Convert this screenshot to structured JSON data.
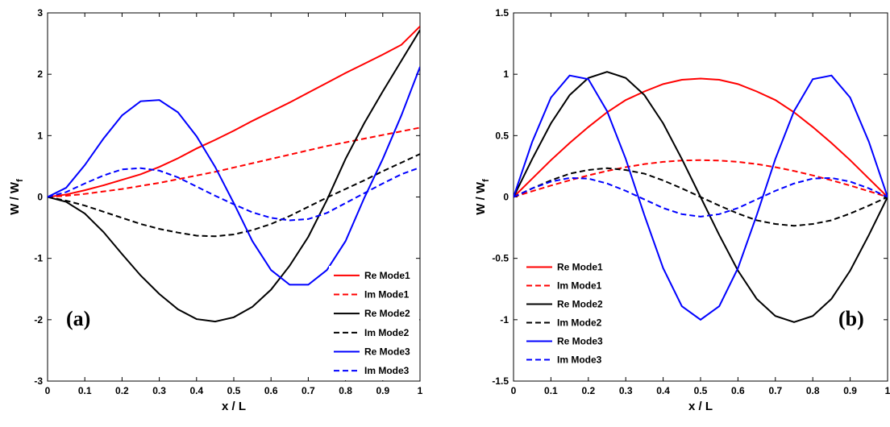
{
  "chart_data": [
    {
      "type": "line",
      "panel_label": "(a)",
      "xlabel": "x / L",
      "ylabel_main": "W / W",
      "ylabel_sub": "f",
      "xlim": [
        0,
        1
      ],
      "ylim": [
        -3,
        3
      ],
      "xticks": [
        "0",
        "0.1",
        "0.2",
        "0.3",
        "0.4",
        "0.5",
        "0.6",
        "0.7",
        "0.8",
        "0.9",
        "1"
      ],
      "yticks": [
        "-3",
        "-2",
        "-1",
        "0",
        "1",
        "2",
        "3"
      ],
      "legend_position": "bottom-right",
      "x": [
        0,
        0.05,
        0.1,
        0.15,
        0.2,
        0.25,
        0.3,
        0.35,
        0.4,
        0.45,
        0.5,
        0.55,
        0.6,
        0.65,
        0.7,
        0.75,
        0.8,
        0.85,
        0.9,
        0.95,
        1
      ],
      "series": [
        {
          "name": "Re Mode1",
          "color": "#ff0000",
          "dash": "solid",
          "values": [
            0,
            0.04,
            0.11,
            0.19,
            0.28,
            0.37,
            0.49,
            0.63,
            0.79,
            0.93,
            1.08,
            1.24,
            1.39,
            1.54,
            1.7,
            1.86,
            2.02,
            2.17,
            2.32,
            2.48,
            2.78
          ]
        },
        {
          "name": "Im  Mode1",
          "color": "#ff0000",
          "dash": "dashed",
          "values": [
            0,
            0.02,
            0.05,
            0.09,
            0.13,
            0.18,
            0.23,
            0.29,
            0.35,
            0.41,
            0.48,
            0.55,
            0.62,
            0.69,
            0.76,
            0.83,
            0.89,
            0.95,
            1.01,
            1.07,
            1.13
          ]
        },
        {
          "name": "Re Mode2",
          "color": "#000000",
          "dash": "solid",
          "values": [
            0,
            -0.08,
            -0.27,
            -0.57,
            -0.93,
            -1.28,
            -1.58,
            -1.83,
            -1.99,
            -2.03,
            -1.96,
            -1.79,
            -1.51,
            -1.12,
            -0.65,
            -0.05,
            0.62,
            1.2,
            1.72,
            2.22,
            2.72
          ]
        },
        {
          "name": "Im  Mode2",
          "color": "#000000",
          "dash": "dashed",
          "values": [
            0,
            -0.06,
            -0.14,
            -0.24,
            -0.34,
            -0.44,
            -0.52,
            -0.58,
            -0.63,
            -0.64,
            -0.61,
            -0.54,
            -0.44,
            -0.31,
            -0.16,
            -0.01,
            0.13,
            0.27,
            0.42,
            0.56,
            0.7
          ]
        },
        {
          "name": "Re Mode3",
          "color": "#0000ff",
          "dash": "solid",
          "values": [
            0,
            0.15,
            0.52,
            0.95,
            1.33,
            1.56,
            1.58,
            1.38,
            0.99,
            0.49,
            -0.1,
            -0.72,
            -1.19,
            -1.43,
            -1.43,
            -1.19,
            -0.72,
            -0.02,
            0.62,
            1.33,
            2.12
          ]
        },
        {
          "name": "Im  Mode3",
          "color": "#0000ff",
          "dash": "dashed",
          "values": [
            0,
            0.08,
            0.22,
            0.35,
            0.45,
            0.47,
            0.43,
            0.32,
            0.17,
            0.02,
            -0.12,
            -0.25,
            -0.34,
            -0.38,
            -0.36,
            -0.26,
            -0.1,
            0.06,
            0.22,
            0.37,
            0.48
          ]
        }
      ]
    },
    {
      "type": "line",
      "panel_label": "(b)",
      "xlabel": "x / L",
      "ylabel_main": "W / W",
      "ylabel_sub": "f",
      "xlim": [
        0,
        1
      ],
      "ylim": [
        -1.5,
        1.5
      ],
      "xticks": [
        "0",
        "0.1",
        "0.2",
        "0.3",
        "0.4",
        "0.5",
        "0.6",
        "0.7",
        "0.8",
        "0.9",
        "1"
      ],
      "yticks": [
        "-1.5",
        "-1",
        "-0.5",
        "0",
        "0.5",
        "1",
        "1.5"
      ],
      "legend_position": "bottom-left",
      "x": [
        0,
        0.05,
        0.1,
        0.15,
        0.2,
        0.25,
        0.3,
        0.35,
        0.4,
        0.45,
        0.5,
        0.55,
        0.6,
        0.65,
        0.7,
        0.75,
        0.8,
        0.85,
        0.9,
        0.95,
        1
      ],
      "series": [
        {
          "name": "Re Mode1",
          "color": "#ff0000",
          "dash": "solid",
          "values": [
            0,
            0.15,
            0.3,
            0.44,
            0.57,
            0.69,
            0.79,
            0.86,
            0.92,
            0.955,
            0.965,
            0.955,
            0.92,
            0.86,
            0.79,
            0.69,
            0.57,
            0.44,
            0.3,
            0.15,
            0
          ]
        },
        {
          "name": "Im  Mode1",
          "color": "#ff0000",
          "dash": "dashed",
          "values": [
            0,
            0.047,
            0.093,
            0.136,
            0.176,
            0.212,
            0.243,
            0.268,
            0.286,
            0.297,
            0.3,
            0.297,
            0.286,
            0.268,
            0.243,
            0.212,
            0.176,
            0.136,
            0.093,
            0.047,
            0
          ]
        },
        {
          "name": "Re Mode2",
          "color": "#000000",
          "dash": "solid",
          "values": [
            0,
            0.31,
            0.6,
            0.83,
            0.97,
            1.02,
            0.97,
            0.83,
            0.6,
            0.31,
            0,
            -0.31,
            -0.6,
            -0.83,
            -0.97,
            -1.02,
            -0.97,
            -0.83,
            -0.6,
            -0.31,
            0
          ]
        },
        {
          "name": "Im  Mode2",
          "color": "#000000",
          "dash": "dashed",
          "values": [
            0,
            0.07,
            0.135,
            0.19,
            0.22,
            0.235,
            0.22,
            0.19,
            0.135,
            0.07,
            0,
            -0.07,
            -0.135,
            -0.19,
            -0.22,
            -0.235,
            -0.22,
            -0.19,
            -0.135,
            -0.07,
            0
          ]
        },
        {
          "name": "Re Mode3",
          "color": "#0000ff",
          "dash": "solid",
          "values": [
            0,
            0.45,
            0.81,
            0.99,
            0.96,
            0.7,
            0.31,
            -0.15,
            -0.58,
            -0.89,
            -1.0,
            -0.89,
            -0.58,
            -0.15,
            0.31,
            0.7,
            0.96,
            0.99,
            0.81,
            0.45,
            0
          ]
        },
        {
          "name": "Im  Mode3",
          "color": "#0000ff",
          "dash": "dashed",
          "values": [
            0,
            0.07,
            0.125,
            0.155,
            0.15,
            0.11,
            0.05,
            -0.02,
            -0.09,
            -0.14,
            -0.16,
            -0.14,
            -0.09,
            -0.02,
            0.05,
            0.11,
            0.15,
            0.155,
            0.125,
            0.07,
            0
          ]
        }
      ]
    }
  ]
}
